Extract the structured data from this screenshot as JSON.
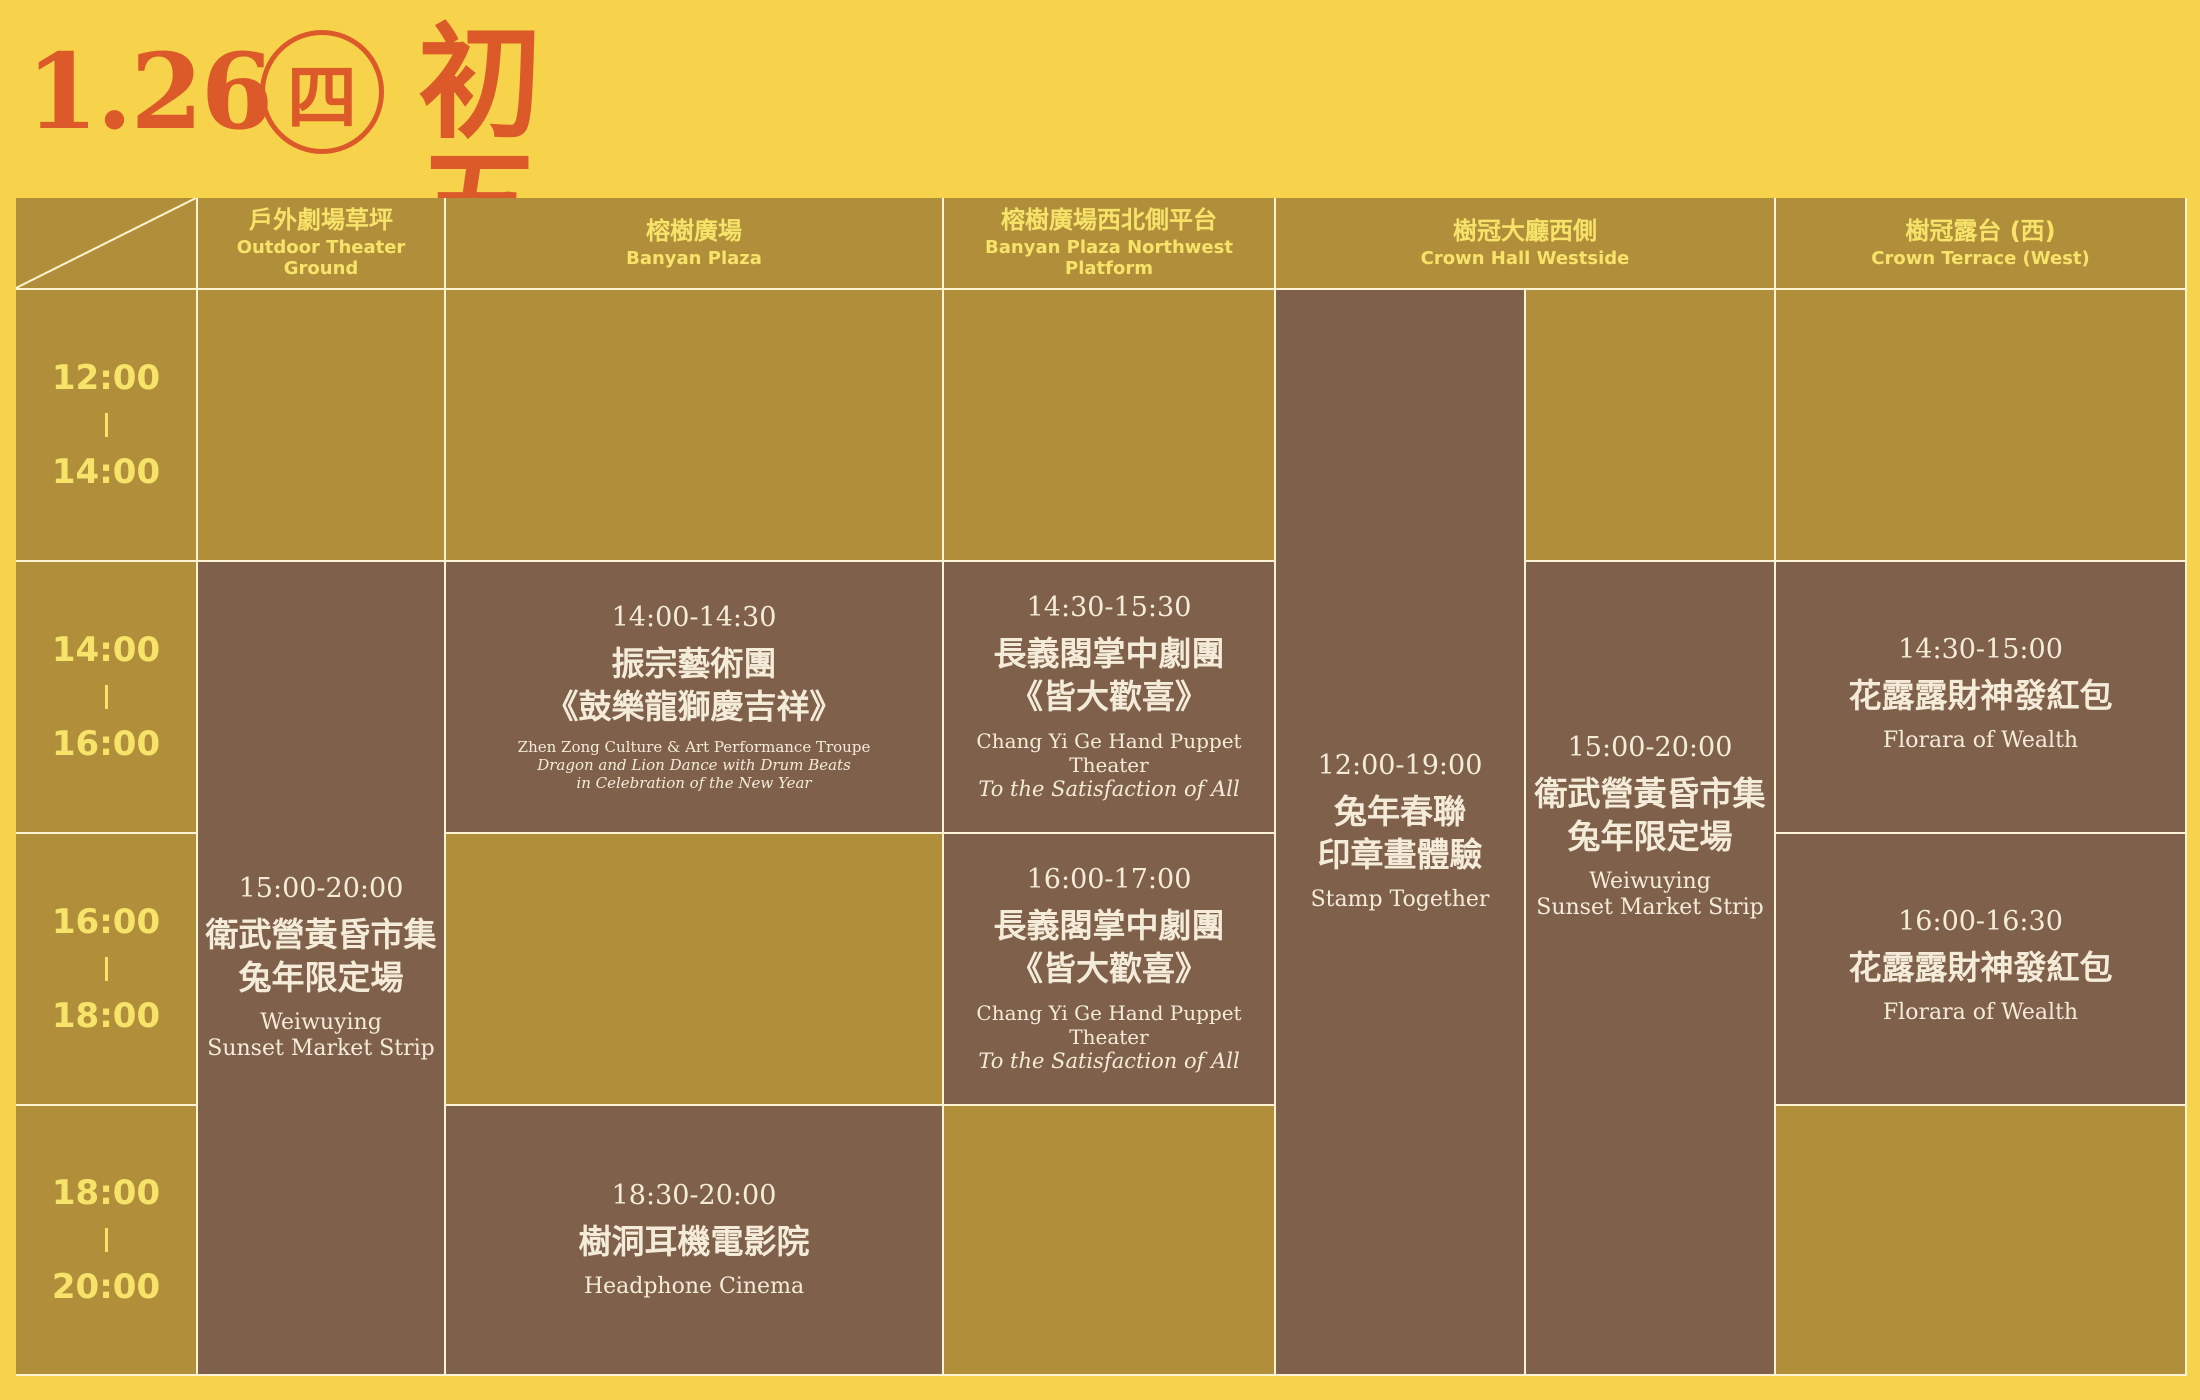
{
  "header": {
    "date": "1.26",
    "weekday": "四",
    "lunar_day": "初五"
  },
  "colors": {
    "background": "#f6d34a",
    "accent": "#dc5a2a",
    "cell_gold": "#b18f3a",
    "cell_brown": "#7e604b",
    "label_yellow": "#f7e36a"
  },
  "venues": [
    {
      "zh": "戶外劇場草坪",
      "en": "Outdoor Theater Ground"
    },
    {
      "zh": "榕樹廣場",
      "en": "Banyan Plaza"
    },
    {
      "zh": "榕樹廣場西北側平台",
      "en": "Banyan Plaza Northwest Platform"
    },
    {
      "zh": "樹冠大廳西側",
      "en": "Crown Hall Westside"
    },
    {
      "zh": "樹冠露台 (西)",
      "en": "Crown Terrace (West)"
    }
  ],
  "slots": [
    {
      "start": "12:00",
      "end": "14:00"
    },
    {
      "start": "14:00",
      "end": "16:00"
    },
    {
      "start": "16:00",
      "end": "18:00"
    },
    {
      "start": "18:00",
      "end": "20:00"
    }
  ],
  "events": {
    "outdoor_market": {
      "time": "15:00-20:00",
      "title1": "衛武營黃昏市集",
      "title2": "兔年限定場",
      "en1": "Weiwuying",
      "en2": "Sunset Market Strip"
    },
    "banyan_dragon": {
      "time": "14:00-14:30",
      "title1": "振宗藝術團",
      "title2": "《鼓樂龍獅慶吉祥》",
      "en1": "Zhen Zong Culture & Art Performance Troupe",
      "en2": "Dragon and Lion Dance with Drum Beats",
      "en3": "in Celebration of the New Year"
    },
    "banyan_cinema": {
      "time": "18:30-20:00",
      "title": "樹洞耳機電影院",
      "en": "Headphone Cinema"
    },
    "nw_puppet_1": {
      "time": "14:30-15:30",
      "title1": "長義閣掌中劇團",
      "title2": "《皆大歡喜》",
      "en1": "Chang Yi Ge Hand Puppet Theater",
      "en2": "To the Satisfaction of All"
    },
    "nw_puppet_2": {
      "time": "16:00-17:00",
      "title1": "長義閣掌中劇團",
      "title2": "《皆大歡喜》",
      "en1": "Chang Yi Ge Hand Puppet Theater",
      "en2": "To the Satisfaction of All"
    },
    "crown_stamp": {
      "time": "12:00-19:00",
      "title1": "兔年春聯",
      "title2": "印章畫體驗",
      "en": "Stamp Together"
    },
    "crown_market": {
      "time": "15:00-20:00",
      "title1": "衛武營黃昏市集",
      "title2": "兔年限定場",
      "en1": "Weiwuying",
      "en2": "Sunset Market Strip"
    },
    "terrace_1": {
      "time": "14:30-15:00",
      "title": "花露露財神發紅包",
      "en": "Florara of Wealth"
    },
    "terrace_2": {
      "time": "16:00-16:30",
      "title": "花露露財神發紅包",
      "en": "Florara of Wealth"
    }
  }
}
